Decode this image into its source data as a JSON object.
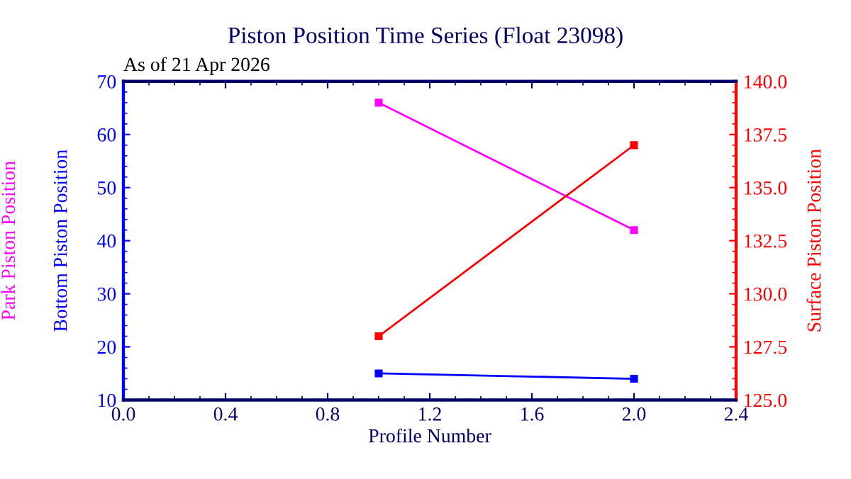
{
  "chart_data": {
    "type": "line",
    "title": "Piston Position Time Series (Float 23098)",
    "subtitle": "As of 21 Apr 2026",
    "xlabel": "Profile Number",
    "x": [
      1,
      2
    ],
    "marker": "square",
    "series": [
      {
        "name": "Park Piston Position",
        "color": "#ff00ff",
        "values": [
          66,
          42
        ]
      },
      {
        "name": "Bottom Piston Position",
        "color": "#0000ff",
        "values": [
          15,
          14
        ]
      },
      {
        "name": "Surface Piston Position",
        "color": "#ff0000",
        "values": [
          128,
          137
        ],
        "axis": "y2"
      }
    ],
    "xlim": [
      0,
      2.4
    ],
    "xticks": [
      {
        "value": 0,
        "label": "0.0"
      },
      0.4,
      0.8,
      1.2,
      1.6,
      {
        "value": 2,
        "label": "2.0"
      },
      2.4
    ],
    "ylim": [
      10,
      70
    ],
    "yticks": [
      10,
      20,
      30,
      40,
      50,
      60,
      70
    ],
    "y2lim": [
      125,
      140
    ],
    "y2ticks": [
      {
        "value": 125,
        "label": "125.0"
      },
      127.5,
      {
        "value": 130,
        "label": "130.0"
      },
      132.5,
      {
        "value": 135,
        "label": "135.0"
      },
      137.5,
      {
        "value": 140,
        "label": "140.0"
      }
    ],
    "grid": false,
    "legend": false
  }
}
